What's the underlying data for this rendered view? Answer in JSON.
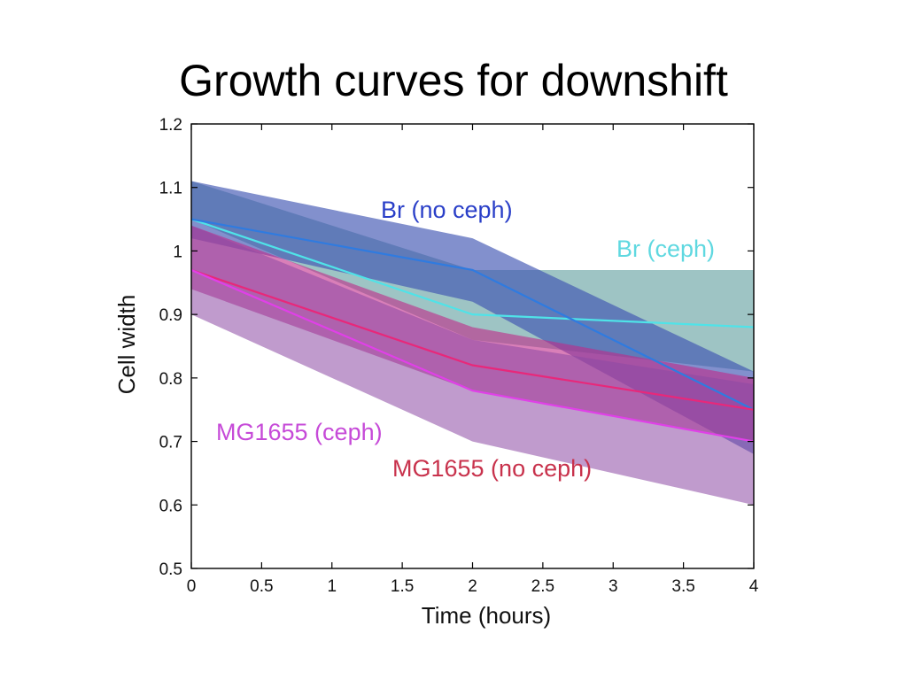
{
  "slide": {
    "title": "Growth curves for downshift"
  },
  "chart_data": {
    "type": "line",
    "title": "",
    "xlabel": "Time (hours)",
    "ylabel": "Cell width",
    "xlim": [
      0,
      4
    ],
    "ylim": [
      0.5,
      1.2
    ],
    "x_ticks": [
      0,
      0.5,
      1,
      1.5,
      2,
      2.5,
      3,
      3.5,
      4
    ],
    "x_tick_labels": [
      "0",
      "0.5",
      "1",
      "1.5",
      "2",
      "2.5",
      "3",
      "3.5",
      "4"
    ],
    "y_ticks": [
      0.5,
      0.6,
      0.7,
      0.8,
      0.9,
      1.0,
      1.1,
      1.2
    ],
    "y_tick_labels": [
      "0.5",
      "0.6",
      "0.7",
      "0.8",
      "0.9",
      "1",
      "1.1",
      "1.2"
    ],
    "grid": false,
    "legend": "inline labels",
    "series": [
      {
        "name": "Br (ceph)",
        "color": "#4fe3e8",
        "band_color": "#5e9c9c",
        "x": [
          0,
          2,
          4
        ],
        "values": [
          1.05,
          0.9,
          0.88
        ],
        "lower": [
          1.05,
          0.86,
          0.81
        ],
        "upper": [
          1.11,
          0.97,
          0.97
        ]
      },
      {
        "name": "Br (no ceph)",
        "color": "#2f7be0",
        "band_color": "#3f55b2",
        "x": [
          0,
          2,
          4
        ],
        "values": [
          1.05,
          0.97,
          0.75
        ],
        "lower": [
          1.02,
          0.92,
          0.68
        ],
        "upper": [
          1.11,
          1.02,
          0.81
        ]
      },
      {
        "name": "MG1655 (no ceph)",
        "color": "#e8287a",
        "band_color": "#c02a88",
        "x": [
          0,
          2,
          4
        ],
        "values": [
          0.97,
          0.82,
          0.75
        ],
        "lower": [
          0.94,
          0.78,
          0.7
        ],
        "upper": [
          1.04,
          0.88,
          0.8
        ]
      },
      {
        "name": "MG1655 (ceph)",
        "color": "#e040e8",
        "band_color": "#8c49a4",
        "x": [
          0,
          2,
          4
        ],
        "values": [
          0.97,
          0.78,
          0.7
        ],
        "lower": [
          0.9,
          0.7,
          0.6
        ],
        "upper": [
          1.04,
          0.86,
          0.79
        ]
      }
    ],
    "label_colors": {
      "br_no_ceph": "#2a3fc8",
      "br_ceph": "#5fd8e0",
      "mg_ceph": "#c64ad8",
      "mg_no_ceph": "#c8324c"
    }
  }
}
